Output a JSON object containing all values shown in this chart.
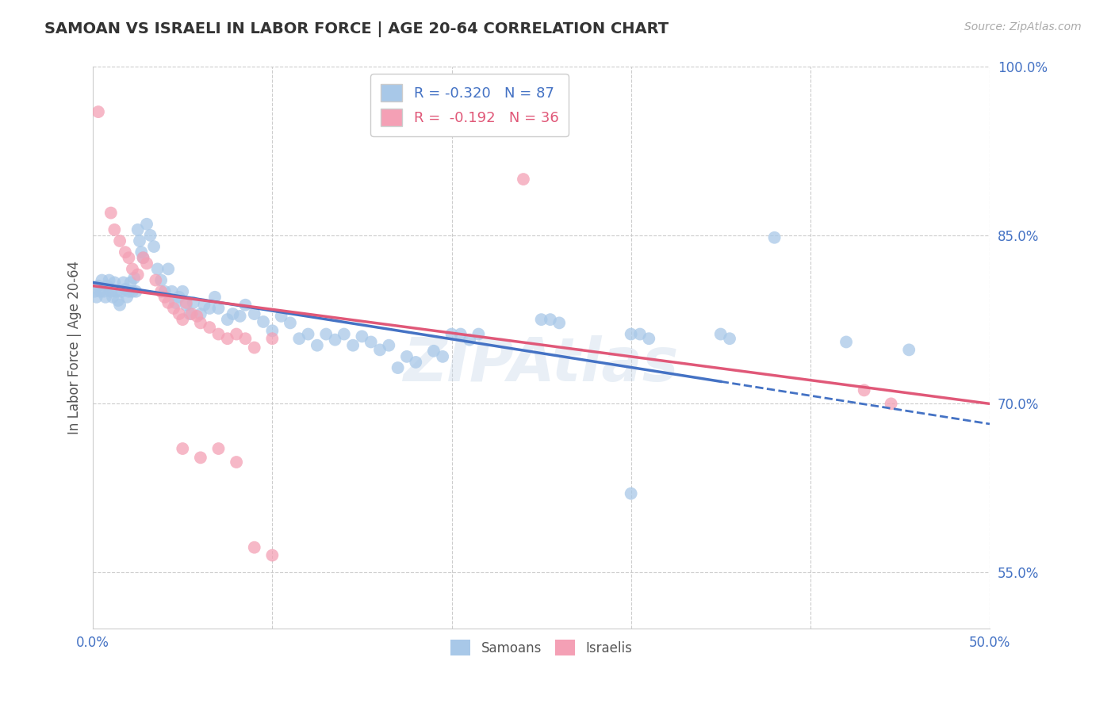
{
  "title": "SAMOAN VS ISRAELI IN LABOR FORCE | AGE 20-64 CORRELATION CHART",
  "source": "Source: ZipAtlas.com",
  "ylabel_label": "In Labor Force | Age 20-64",
  "x_min": 0.0,
  "x_max": 0.5,
  "y_min": 0.5,
  "y_max": 1.0,
  "samoan_color": "#a8c8e8",
  "israeli_color": "#f4a0b5",
  "trend_samoan_color": "#4472c4",
  "trend_israeli_color": "#e05878",
  "watermark": "ZIPAtlas",
  "background_color": "#ffffff",
  "trend_samoan_x0": 0.0,
  "trend_samoan_y0": 0.808,
  "trend_samoan_x1": 0.5,
  "trend_samoan_y1": 0.682,
  "trend_samoan_solid_end": 0.35,
  "trend_israeli_x0": 0.0,
  "trend_israeli_y0": 0.805,
  "trend_israeli_x1": 0.5,
  "trend_israeli_y1": 0.7,
  "samoan_points": [
    [
      0.001,
      0.8
    ],
    [
      0.002,
      0.795
    ],
    [
      0.003,
      0.805
    ],
    [
      0.004,
      0.8
    ],
    [
      0.005,
      0.81
    ],
    [
      0.006,
      0.8
    ],
    [
      0.007,
      0.795
    ],
    [
      0.008,
      0.805
    ],
    [
      0.009,
      0.81
    ],
    [
      0.01,
      0.8
    ],
    [
      0.011,
      0.795
    ],
    [
      0.012,
      0.808
    ],
    [
      0.013,
      0.8
    ],
    [
      0.014,
      0.792
    ],
    [
      0.015,
      0.788
    ],
    [
      0.016,
      0.8
    ],
    [
      0.017,
      0.808
    ],
    [
      0.018,
      0.802
    ],
    [
      0.019,
      0.795
    ],
    [
      0.02,
      0.8
    ],
    [
      0.021,
      0.808
    ],
    [
      0.022,
      0.8
    ],
    [
      0.023,
      0.812
    ],
    [
      0.024,
      0.8
    ],
    [
      0.025,
      0.855
    ],
    [
      0.026,
      0.845
    ],
    [
      0.027,
      0.835
    ],
    [
      0.028,
      0.83
    ],
    [
      0.03,
      0.86
    ],
    [
      0.032,
      0.85
    ],
    [
      0.034,
      0.84
    ],
    [
      0.036,
      0.82
    ],
    [
      0.038,
      0.81
    ],
    [
      0.04,
      0.8
    ],
    [
      0.042,
      0.82
    ],
    [
      0.044,
      0.8
    ],
    [
      0.046,
      0.79
    ],
    [
      0.048,
      0.795
    ],
    [
      0.05,
      0.8
    ],
    [
      0.052,
      0.788
    ],
    [
      0.054,
      0.78
    ],
    [
      0.056,
      0.79
    ],
    [
      0.06,
      0.78
    ],
    [
      0.062,
      0.788
    ],
    [
      0.065,
      0.785
    ],
    [
      0.068,
      0.795
    ],
    [
      0.07,
      0.785
    ],
    [
      0.075,
      0.775
    ],
    [
      0.078,
      0.78
    ],
    [
      0.082,
      0.778
    ],
    [
      0.085,
      0.788
    ],
    [
      0.09,
      0.78
    ],
    [
      0.095,
      0.773
    ],
    [
      0.1,
      0.765
    ],
    [
      0.105,
      0.778
    ],
    [
      0.11,
      0.772
    ],
    [
      0.115,
      0.758
    ],
    [
      0.12,
      0.762
    ],
    [
      0.125,
      0.752
    ],
    [
      0.13,
      0.762
    ],
    [
      0.135,
      0.757
    ],
    [
      0.14,
      0.762
    ],
    [
      0.145,
      0.752
    ],
    [
      0.15,
      0.76
    ],
    [
      0.155,
      0.755
    ],
    [
      0.16,
      0.748
    ],
    [
      0.165,
      0.752
    ],
    [
      0.17,
      0.732
    ],
    [
      0.175,
      0.742
    ],
    [
      0.18,
      0.737
    ],
    [
      0.19,
      0.747
    ],
    [
      0.195,
      0.742
    ],
    [
      0.2,
      0.762
    ],
    [
      0.205,
      0.762
    ],
    [
      0.21,
      0.757
    ],
    [
      0.215,
      0.762
    ],
    [
      0.25,
      0.775
    ],
    [
      0.255,
      0.775
    ],
    [
      0.26,
      0.772
    ],
    [
      0.3,
      0.762
    ],
    [
      0.305,
      0.762
    ],
    [
      0.31,
      0.758
    ],
    [
      0.35,
      0.762
    ],
    [
      0.355,
      0.758
    ],
    [
      0.38,
      0.848
    ],
    [
      0.42,
      0.755
    ],
    [
      0.455,
      0.748
    ],
    [
      0.3,
      0.62
    ]
  ],
  "israeli_points": [
    [
      0.003,
      0.96
    ],
    [
      0.01,
      0.87
    ],
    [
      0.012,
      0.855
    ],
    [
      0.015,
      0.845
    ],
    [
      0.018,
      0.835
    ],
    [
      0.02,
      0.83
    ],
    [
      0.022,
      0.82
    ],
    [
      0.025,
      0.815
    ],
    [
      0.028,
      0.83
    ],
    [
      0.03,
      0.825
    ],
    [
      0.035,
      0.81
    ],
    [
      0.038,
      0.8
    ],
    [
      0.04,
      0.795
    ],
    [
      0.042,
      0.79
    ],
    [
      0.045,
      0.785
    ],
    [
      0.048,
      0.78
    ],
    [
      0.05,
      0.775
    ],
    [
      0.052,
      0.79
    ],
    [
      0.055,
      0.78
    ],
    [
      0.058,
      0.778
    ],
    [
      0.06,
      0.772
    ],
    [
      0.065,
      0.768
    ],
    [
      0.07,
      0.762
    ],
    [
      0.075,
      0.758
    ],
    [
      0.08,
      0.762
    ],
    [
      0.085,
      0.758
    ],
    [
      0.09,
      0.75
    ],
    [
      0.1,
      0.758
    ],
    [
      0.05,
      0.66
    ],
    [
      0.06,
      0.652
    ],
    [
      0.07,
      0.66
    ],
    [
      0.08,
      0.648
    ],
    [
      0.09,
      0.572
    ],
    [
      0.1,
      0.565
    ],
    [
      0.24,
      0.9
    ],
    [
      0.43,
      0.712
    ],
    [
      0.445,
      0.7
    ]
  ]
}
